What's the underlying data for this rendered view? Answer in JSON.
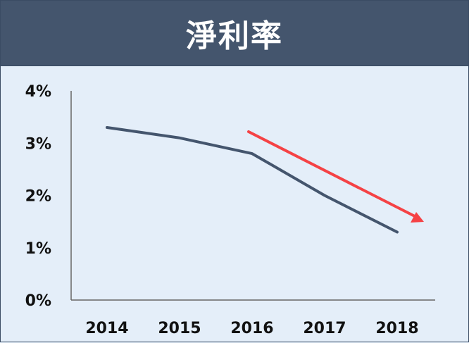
{
  "title": "淨利率",
  "chart_data": {
    "type": "line",
    "title": "淨利率",
    "categories": [
      "2014",
      "2015",
      "2016",
      "2017",
      "2018"
    ],
    "series": [
      {
        "values": [
          3.3,
          3.1,
          2.8,
          2.0,
          1.3
        ]
      }
    ],
    "ylim": [
      0,
      4
    ],
    "y_ticks": [
      "0%",
      "1%",
      "2%",
      "3%",
      "4%"
    ],
    "annotation": {
      "type": "trend-arrow",
      "direction": "down",
      "color": "#f54245"
    },
    "colors": {
      "line": "#44556d",
      "arrow": "#f54245",
      "axis": "#666666",
      "background": "#e4eef9",
      "header": "#44556d"
    }
  }
}
